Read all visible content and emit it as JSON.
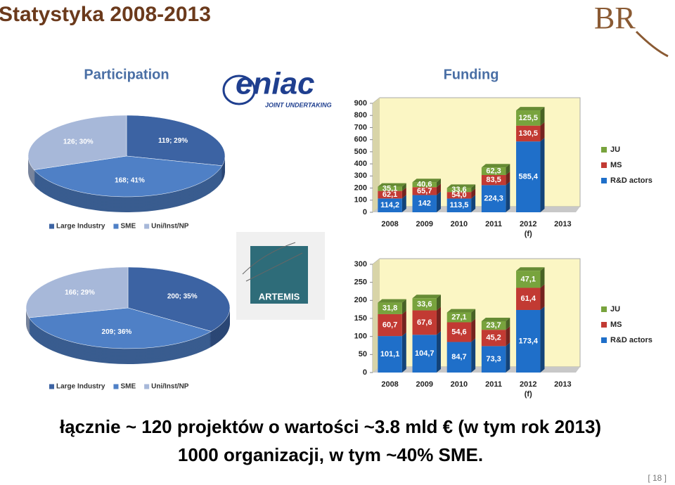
{
  "title": "Statystyka 2008-2013",
  "logos": {
    "eniac": "eniac",
    "eniac_sub": "JOINT UNDERTAKING",
    "artemis": "ARTEMIS",
    "br": "BR"
  },
  "summary": [
    "łącznie ~ 120 projektów o wartości ~3.8 mld € (w tym rok 2013)",
    "1000 organizacji, w tym ~40% SME."
  ],
  "page_number": "[ 18 ]",
  "chart_data": [
    {
      "type": "pie",
      "title": "Participation",
      "categories": [
        "Large Industry",
        "SME",
        "Uni/Inst/NP"
      ],
      "values": [
        119,
        168,
        126
      ],
      "value_labels": [
        "119; 29%",
        "168; 41%",
        "126; 30%"
      ],
      "colors": [
        "#3c63a3",
        "#4f80c6",
        "#a7b8d9"
      ],
      "legend": "bottom"
    },
    {
      "type": "bar",
      "stacked": true,
      "title": "Funding",
      "categories": [
        "2008",
        "2009",
        "2010",
        "2011",
        "2012\n(f)",
        "2013"
      ],
      "series": [
        {
          "name": "R&D actors",
          "color": "#1f6fc9",
          "values": [
            114.2,
            142,
            113.5,
            224.3,
            585.4,
            null
          ],
          "value_labels": [
            "114,2",
            "142",
            "113,5",
            "224,3",
            "585,4",
            null
          ]
        },
        {
          "name": "MS",
          "color": "#c23a33",
          "values": [
            62.1,
            65.7,
            54.0,
            83.5,
            130.5,
            null
          ],
          "value_labels": [
            "62,1",
            "65,7",
            "54,0",
            "83,5",
            "130,5",
            null
          ]
        },
        {
          "name": "JU",
          "color": "#78a33d",
          "values": [
            35.1,
            40.6,
            33.6,
            62.3,
            125.5,
            null
          ],
          "value_labels": [
            "35,1",
            "40,6",
            "33,6",
            "62,3",
            "125,5",
            null
          ]
        }
      ],
      "ylim": [
        0,
        900
      ],
      "yticks": [
        0,
        100,
        200,
        300,
        400,
        500,
        600,
        700,
        800,
        900
      ],
      "legend": "right"
    },
    {
      "type": "pie",
      "categories": [
        "Large Industry",
        "SME",
        "Uni/Inst/NP"
      ],
      "values": [
        200,
        209,
        166
      ],
      "value_labels": [
        "200; 35%",
        "209; 36%",
        "166; 29%"
      ],
      "colors": [
        "#3c63a3",
        "#4f80c6",
        "#a7b8d9"
      ],
      "legend": "bottom"
    },
    {
      "type": "bar",
      "stacked": true,
      "categories": [
        "2008",
        "2009",
        "2010",
        "2011",
        "2012\n(f)",
        "2013"
      ],
      "series": [
        {
          "name": "R&D actors",
          "color": "#1f6fc9",
          "values": [
            101.1,
            104.7,
            84.7,
            73.3,
            173.4,
            null
          ],
          "value_labels": [
            "101,1",
            "104,7",
            "84,7",
            "73,3",
            "173,4",
            null
          ]
        },
        {
          "name": "MS",
          "color": "#c23a33",
          "values": [
            60.7,
            67.6,
            54.6,
            45.2,
            61.4,
            null
          ],
          "value_labels": [
            "60,7",
            "67,6",
            "54,6",
            "45,2",
            "61,4",
            null
          ]
        },
        {
          "name": "JU",
          "color": "#78a33d",
          "values": [
            31.8,
            33.6,
            27.1,
            23.7,
            47.1,
            null
          ],
          "value_labels": [
            "31,8",
            "33,6",
            "27,1",
            "23,7",
            "47,1",
            null
          ]
        }
      ],
      "ylim": [
        0,
        300
      ],
      "yticks": [
        0,
        50,
        100,
        150,
        200,
        250,
        300
      ],
      "legend": "right"
    }
  ]
}
